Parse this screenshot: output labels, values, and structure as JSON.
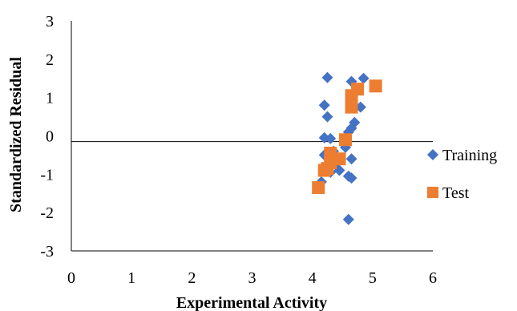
{
  "chart_data": {
    "type": "scatter",
    "title": "",
    "xlabel": "Experimental Activity",
    "ylabel": "Standardized Residual",
    "xlim": [
      0,
      6
    ],
    "ylim": [
      -3,
      3
    ],
    "x_ticks": [
      "0",
      "1",
      "2",
      "3",
      "4",
      "5",
      "6"
    ],
    "y_ticks": [
      "3",
      "2",
      "1",
      "0",
      "-1",
      "-2",
      "-3"
    ],
    "reference_line_y": -0.15,
    "legend_position": "right",
    "grid": false,
    "series": [
      {
        "name": "Training",
        "marker": "diamond",
        "color": "#4472C4",
        "points": [
          [
            4.25,
            1.52
          ],
          [
            4.65,
            1.42
          ],
          [
            4.85,
            1.5
          ],
          [
            4.2,
            0.8
          ],
          [
            4.8,
            0.75
          ],
          [
            4.25,
            0.5
          ],
          [
            4.7,
            0.35
          ],
          [
            4.65,
            0.2
          ],
          [
            4.6,
            0.1
          ],
          [
            4.2,
            -0.05
          ],
          [
            4.3,
            -0.07
          ],
          [
            4.55,
            -0.05
          ],
          [
            4.55,
            -0.3
          ],
          [
            4.35,
            -0.4
          ],
          [
            4.2,
            -0.5
          ],
          [
            4.3,
            -0.55
          ],
          [
            4.4,
            -0.7
          ],
          [
            4.65,
            -0.6
          ],
          [
            4.45,
            -0.9
          ],
          [
            4.3,
            -0.95
          ],
          [
            4.6,
            -1.05
          ],
          [
            4.65,
            -1.1
          ],
          [
            4.15,
            -1.2
          ],
          [
            4.6,
            -2.18
          ]
        ]
      },
      {
        "name": "Test",
        "marker": "square",
        "color": "#ED7D31",
        "points": [
          [
            5.05,
            1.3
          ],
          [
            4.75,
            1.22
          ],
          [
            4.65,
            1.05
          ],
          [
            4.65,
            0.9
          ],
          [
            4.65,
            0.75
          ],
          [
            4.55,
            -0.1
          ],
          [
            4.3,
            -0.45
          ],
          [
            4.45,
            -0.6
          ],
          [
            4.3,
            -0.7
          ],
          [
            4.25,
            -0.85
          ],
          [
            4.2,
            -0.9
          ],
          [
            4.1,
            -1.35
          ]
        ]
      }
    ]
  }
}
